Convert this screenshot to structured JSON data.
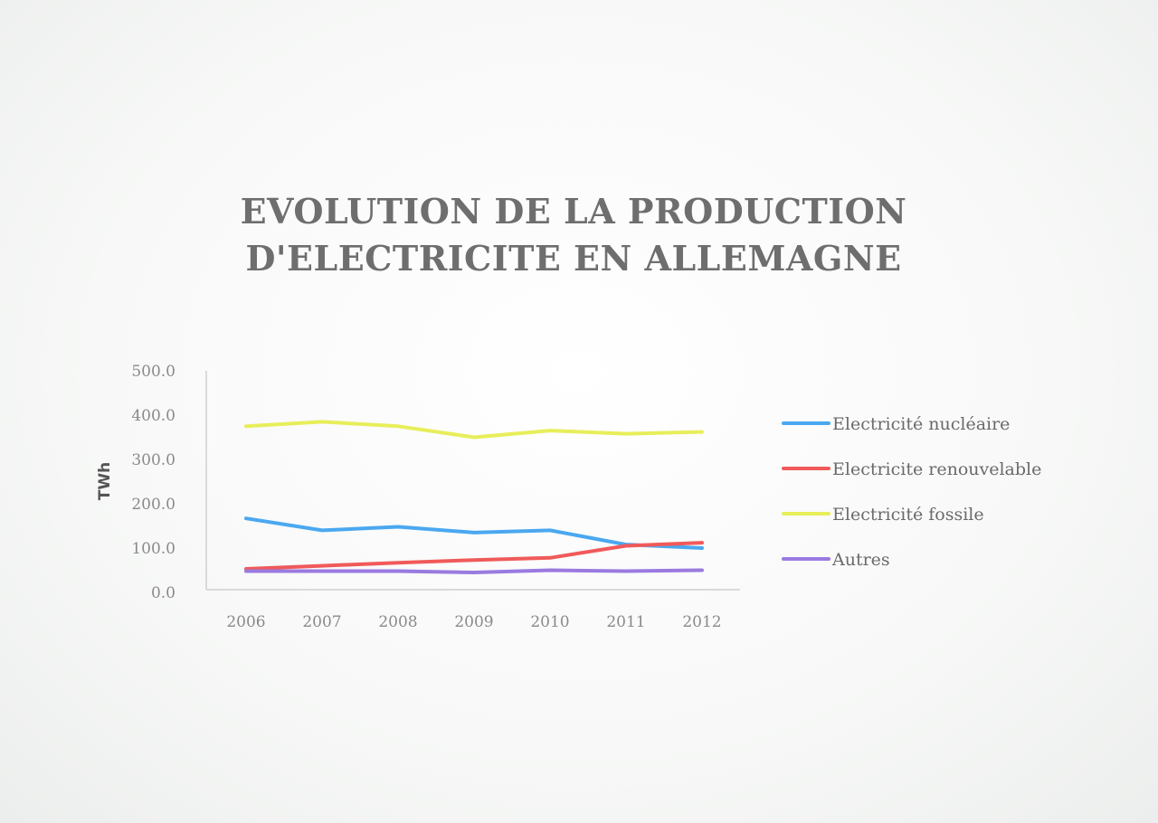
{
  "chart_data": {
    "type": "line",
    "title": [
      "EVOLUTION DE LA PRODUCTION",
      "D'ELECTRICITE EN ALLEMAGNE"
    ],
    "ylabel": "TWh",
    "xlabel": "",
    "categories": [
      "2006",
      "2007",
      "2008",
      "2009",
      "2010",
      "2011",
      "2012"
    ],
    "y_ticks": [
      "0.0",
      "100.0",
      "200.0",
      "300.0",
      "400.0",
      "500.0"
    ],
    "ylim": [
      0,
      500
    ],
    "grid": false,
    "legend_position": "right",
    "series": [
      {
        "name": "Electricité nucléaire",
        "color": "#4aa8f0",
        "values": [
          167,
          140,
          148,
          135,
          140,
          108,
          100
        ]
      },
      {
        "name": "Electricite renouvelable",
        "color": "#f05a5a",
        "values": [
          53,
          60,
          67,
          73,
          78,
          105,
          112
        ]
      },
      {
        "name": "Electricité fossile",
        "color": "#e8ee5a",
        "values": [
          375,
          385,
          375,
          350,
          365,
          358,
          362
        ]
      },
      {
        "name": "Autres",
        "color": "#9a7ae0",
        "values": [
          48,
          48,
          48,
          45,
          50,
          48,
          50
        ]
      }
    ]
  }
}
